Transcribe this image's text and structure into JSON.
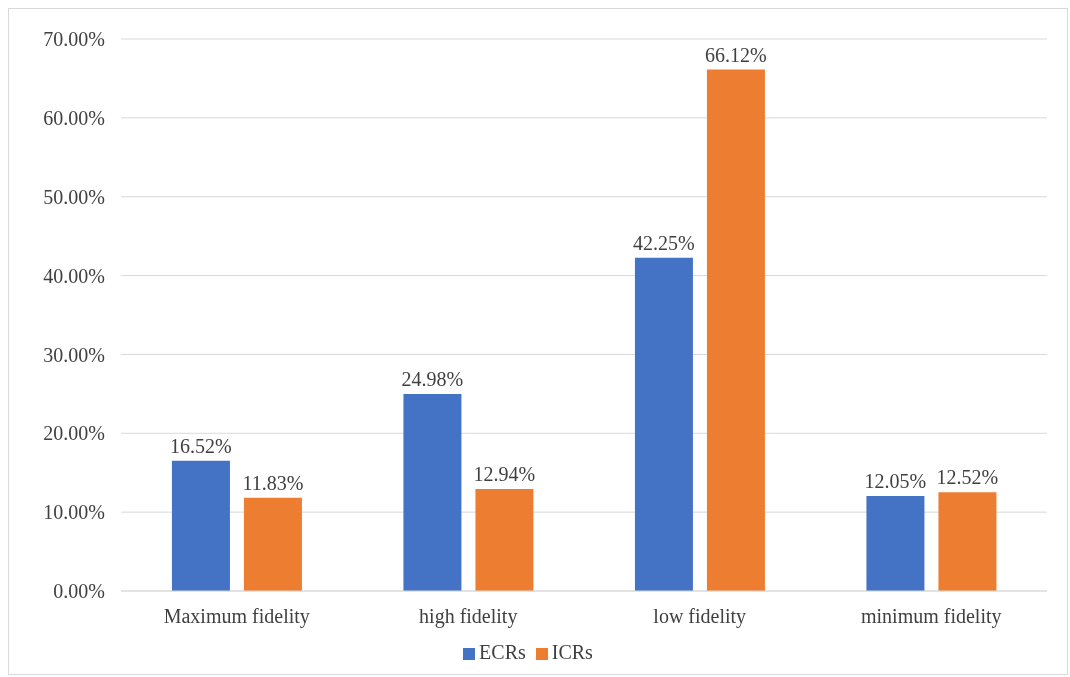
{
  "chart_data": {
    "type": "bar",
    "categories": [
      "Maximum fidelity",
      "high fidelity",
      "low fidelity",
      "minimum fidelity"
    ],
    "series": [
      {
        "name": "ECRs",
        "color": "#4472c4",
        "values": [
          16.52,
          24.98,
          42.25,
          12.05
        ],
        "value_labels": [
          "16.52%",
          "24.98%",
          "42.25%",
          "12.05%"
        ]
      },
      {
        "name": "ICRs",
        "color": "#ed7d31",
        "values": [
          11.83,
          12.94,
          66.12,
          12.52
        ],
        "value_labels": [
          "11.83%",
          "12.94%",
          "66.12%",
          "12.52%"
        ]
      }
    ],
    "ylim": [
      0,
      70
    ],
    "yticks": [
      {
        "value": 0,
        "label": "0.00%"
      },
      {
        "value": 10,
        "label": "10.00%"
      },
      {
        "value": 20,
        "label": "20.00%"
      },
      {
        "value": 30,
        "label": "30.00%"
      },
      {
        "value": 40,
        "label": "40.00%"
      },
      {
        "value": 50,
        "label": "50.00%"
      },
      {
        "value": 60,
        "label": "60.00%"
      },
      {
        "value": 70,
        "label": "70.00%"
      }
    ],
    "grid": "y",
    "legend": "bottom"
  }
}
